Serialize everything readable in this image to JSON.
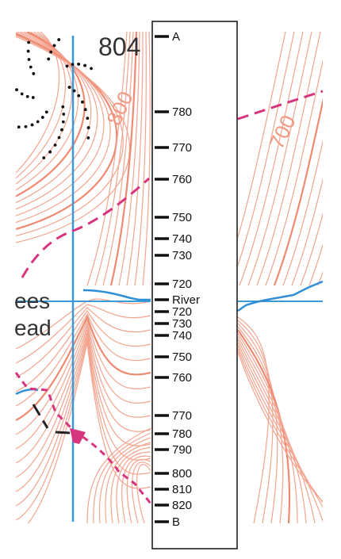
{
  "map": {
    "spot_height": "804",
    "contour_labels": [
      "800",
      "700"
    ],
    "place_name": [
      "ees",
      "ead"
    ]
  },
  "strip": {
    "ticks": [
      "A",
      "780",
      "770",
      "760",
      "750",
      "740",
      "730",
      "720",
      "River",
      "720",
      "730",
      "740",
      "750",
      "760",
      "770",
      "780",
      "790",
      "800",
      "810",
      "820",
      "B"
    ]
  }
}
